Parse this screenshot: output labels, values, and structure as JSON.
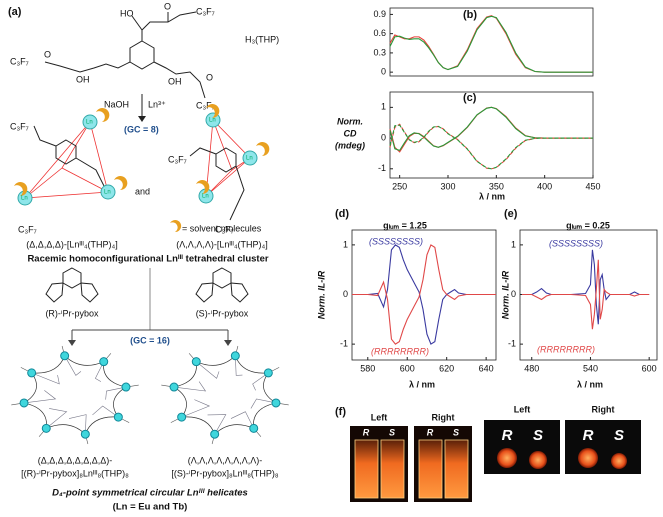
{
  "figure": {
    "panel_labels": [
      "(a)",
      "(b)",
      "(c)",
      "(d)",
      "(e)",
      "(f)"
    ],
    "a": {
      "ligand_name": "H₃(THP)",
      "ligand_atoms": [
        "HO",
        "O",
        "C₃F₇",
        "C₃F₇",
        "O",
        "OH",
        "OH",
        "O",
        "C₃F₇"
      ],
      "reagents": [
        "NaOH",
        "Ln³⁺"
      ],
      "gc1": "(GC = 8)",
      "cluster_c3f7": [
        "C₃F₇",
        "C₃F₇",
        "C₃F₇",
        "C₃F₇"
      ],
      "ln_labels": [
        "Ln",
        "Ln",
        "Ln",
        "Ln",
        "Ln",
        "Ln"
      ],
      "and": "and",
      "solvent": "= solvent molecules",
      "cluster_left": "(Δ,Δ,Δ,Δ)-[Lnᴵᴵᴵ₄(THP)₄]",
      "cluster_right": "(Λ,Λ,Λ,Λ)-[Lnᴵᴵᴵ₄(THP)₄]",
      "cluster_caption": "Racemic homoconfigurational Lnᴵᴵᴵ tetrahedral cluster",
      "pybox_left": "(R)-ⁱPr-pybox",
      "pybox_right": "(S)-ⁱPr-pybox",
      "gc2": "(GC = 16)",
      "helicate_left": [
        "(Δ,Δ,Δ,Δ,Δ,Δ,Δ,Δ)-",
        "[(R)-ⁱPr-pybox]₈Lnᴵᴵᴵ₈(THP)₈"
      ],
      "helicate_right": [
        "(Λ,Λ,Λ,Λ,Λ,Λ,Λ,Λ)-",
        "[(S)-ⁱPr-pybox]₈Lnᴵᴵᴵ₈(THP)₈"
      ],
      "helicate_caption": [
        "D₄-point symmetrical circular Lnᴵᴵᴵ helicates",
        "(Ln = Eu and Tb)"
      ]
    },
    "f": {
      "headers": [
        "Left",
        "Right",
        "Left",
        "Right"
      ],
      "cells": [
        "R",
        "S",
        "R",
        "S",
        "R",
        "S",
        "R",
        "S"
      ]
    }
  },
  "chart_data": [
    {
      "type": "line",
      "xlim": [
        240,
        450
      ],
      "ylim": [
        -0.06,
        1.0
      ],
      "yticks": [
        0,
        0.3,
        0.6,
        0.9
      ],
      "x": [
        240,
        245,
        250,
        255,
        260,
        265,
        270,
        275,
        280,
        285,
        290,
        295,
        300,
        310,
        320,
        330,
        340,
        345,
        350,
        360,
        370,
        380,
        390,
        400,
        420,
        450
      ],
      "series": [
        {
          "color": "#e8403a",
          "dashed": false,
          "values": [
            0.45,
            0.58,
            0.55,
            0.52,
            0.52,
            0.55,
            0.55,
            0.5,
            0.4,
            0.28,
            0.15,
            0.07,
            0.04,
            0.1,
            0.35,
            0.68,
            0.86,
            0.88,
            0.84,
            0.6,
            0.28,
            0.07,
            0.01,
            0,
            0,
            0
          ]
        },
        {
          "color": "#2a9a3a",
          "dashed": false,
          "values": [
            0.4,
            0.55,
            0.56,
            0.53,
            0.51,
            0.52,
            0.52,
            0.47,
            0.38,
            0.27,
            0.15,
            0.07,
            0.04,
            0.09,
            0.33,
            0.66,
            0.85,
            0.87,
            0.85,
            0.62,
            0.3,
            0.08,
            0.01,
            0,
            0,
            0
          ]
        }
      ]
    },
    {
      "type": "line",
      "xlim": [
        240,
        450
      ],
      "xticks": [
        250,
        300,
        350,
        400,
        450
      ],
      "ylim": [
        -1.3,
        1.5
      ],
      "yticks": [
        -1,
        0,
        1
      ],
      "xlabel": "λ / nm",
      "ylabel": [
        "Norm.",
        "CD",
        "(mdeg)"
      ],
      "x": [
        240,
        245,
        250,
        255,
        260,
        265,
        270,
        275,
        280,
        285,
        290,
        295,
        300,
        310,
        320,
        330,
        340,
        345,
        350,
        360,
        370,
        380,
        390,
        400,
        420,
        450
      ],
      "series": [
        {
          "color": "#e8403a",
          "dashed": false,
          "values": [
            0.3,
            -0.3,
            -0.45,
            -0.2,
            0.05,
            0.15,
            0.15,
            0.05,
            -0.1,
            -0.25,
            -0.3,
            -0.25,
            -0.15,
            0.05,
            0.35,
            0.75,
            0.98,
            1.0,
            0.96,
            0.7,
            0.33,
            0.08,
            0.01,
            0,
            0,
            0
          ]
        },
        {
          "color": "#2a9a3a",
          "dashed": false,
          "values": [
            0.25,
            -0.35,
            -0.4,
            -0.15,
            0.08,
            0.17,
            0.14,
            0.03,
            -0.12,
            -0.26,
            -0.3,
            -0.24,
            -0.14,
            0.06,
            0.36,
            0.76,
            0.97,
            1.0,
            0.95,
            0.68,
            0.31,
            0.07,
            0.01,
            0,
            0,
            0
          ]
        },
        {
          "color": "#e8403a",
          "dashed": true,
          "values": [
            -0.3,
            0.35,
            0.45,
            0.2,
            -0.05,
            -0.15,
            -0.12,
            0.02,
            0.2,
            0.35,
            0.38,
            0.3,
            0.15,
            -0.05,
            -0.35,
            -0.75,
            -0.98,
            -1.0,
            -0.96,
            -0.7,
            -0.33,
            -0.08,
            -0.01,
            0,
            0,
            0
          ]
        },
        {
          "color": "#2a9a3a",
          "dashed": true,
          "values": [
            -0.25,
            0.4,
            0.42,
            0.18,
            -0.06,
            -0.14,
            -0.1,
            0.03,
            0.22,
            0.36,
            0.38,
            0.29,
            0.14,
            -0.06,
            -0.36,
            -0.76,
            -0.97,
            -1.0,
            -0.95,
            -0.68,
            -0.31,
            -0.07,
            -0.01,
            0,
            0,
            0
          ]
        }
      ]
    },
    {
      "type": "line",
      "title": "gₗᵤₘ = 1.25",
      "xlim": [
        572,
        645
      ],
      "xticks": [
        580,
        600,
        620,
        640
      ],
      "ylim": [
        -1.32,
        1.3
      ],
      "yticks": [
        -1,
        0,
        1
      ],
      "xlabel": "λ / nm",
      "ylabel": "Norm. IL-IR",
      "annotations": [
        {
          "text": "(SSSSSSSS)",
          "color": "#3a3aa0"
        },
        {
          "text": "(RRRRRRRR)",
          "color": "#e04848"
        }
      ],
      "x": [
        572,
        575,
        580,
        585,
        588,
        590,
        592,
        594,
        596,
        598,
        600,
        602,
        604,
        606,
        608,
        610,
        612,
        614,
        616,
        618,
        620,
        622,
        624,
        626,
        630,
        640,
        645
      ],
      "series": [
        {
          "color": "#3a3aa0",
          "dashed": false,
          "values": [
            0,
            0,
            0,
            0.02,
            -0.25,
            0.1,
            0.9,
            1.0,
            0.95,
            0.7,
            0.5,
            0.35,
            0.2,
            0.05,
            -0.3,
            -0.8,
            -1.0,
            -0.95,
            -0.5,
            -0.1,
            0,
            0.05,
            0.1,
            0.03,
            0,
            0,
            0
          ]
        },
        {
          "color": "#e04848",
          "dashed": false,
          "values": [
            0,
            0,
            0,
            -0.02,
            0.25,
            -0.1,
            -0.9,
            -1.0,
            -0.95,
            -0.7,
            -0.5,
            -0.35,
            -0.2,
            -0.05,
            0.3,
            0.8,
            1.0,
            0.95,
            0.5,
            0.1,
            0,
            -0.05,
            -0.1,
            -0.03,
            0,
            0,
            0
          ]
        }
      ]
    },
    {
      "type": "line",
      "title": "gₗᵤₘ = 0.25",
      "xlim": [
        468,
        608
      ],
      "xticks": [
        480,
        540,
        600
      ],
      "ylim": [
        -1.32,
        1.3
      ],
      "yticks": [
        -1,
        0,
        1
      ],
      "xlabel": "λ / nm",
      "ylabel": "Norm. IL-IR",
      "annotations": [
        {
          "text": "(SSSSSSSS)",
          "color": "#3a3aa0"
        },
        {
          "text": "(RRRRRRRR)",
          "color": "#e04848"
        }
      ],
      "x": [
        470,
        480,
        485,
        490,
        495,
        500,
        520,
        535,
        540,
        542,
        544,
        546,
        548,
        550,
        552,
        554,
        556,
        560,
        570,
        580,
        585,
        590,
        600
      ],
      "series": [
        {
          "color": "#3a3aa0",
          "dashed": false,
          "values": [
            0,
            0,
            0.05,
            0.12,
            0.03,
            0,
            0,
            0.02,
            0.2,
            0.9,
            0.6,
            -0.2,
            -0.6,
            0.3,
            0.4,
            0.1,
            -0.1,
            0,
            0,
            0,
            0.05,
            0,
            0
          ]
        },
        {
          "color": "#e04848",
          "dashed": false,
          "values": [
            0,
            0,
            -0.05,
            -0.1,
            -0.03,
            0,
            0,
            -0.02,
            -0.2,
            -0.7,
            -0.4,
            0.1,
            0.7,
            -0.5,
            -0.3,
            0.1,
            0.05,
            0,
            0,
            0,
            -0.03,
            0,
            0
          ]
        }
      ]
    }
  ]
}
